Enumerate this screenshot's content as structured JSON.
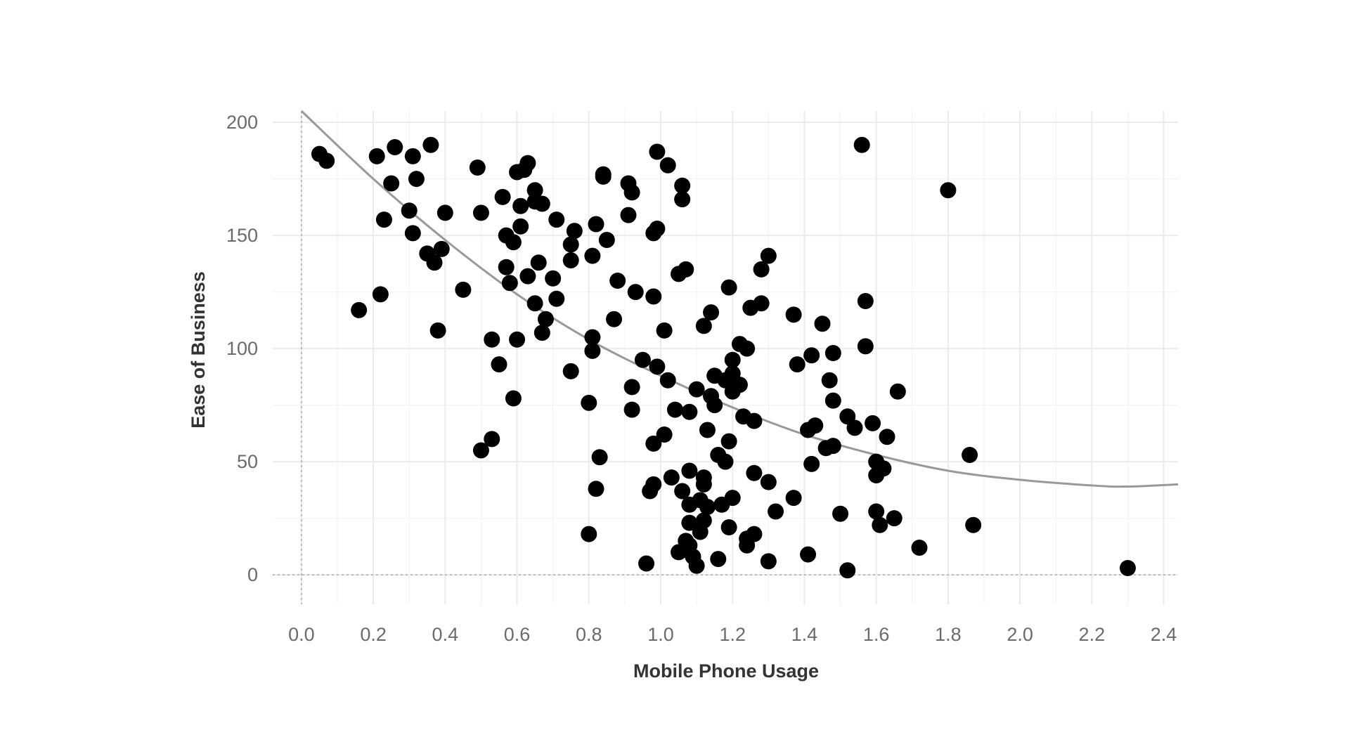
{
  "chart_data": {
    "type": "scatter",
    "title": "",
    "xlabel": "Mobile Phone Usage",
    "ylabel": "Ease of Business",
    "xlim": [
      -0.08,
      2.44
    ],
    "ylim": [
      -13,
      205
    ],
    "x_ticks": [
      "0.0",
      "0.2",
      "0.4",
      "0.6",
      "0.8",
      "1.0",
      "1.2",
      "1.4",
      "1.6",
      "1.8",
      "2.0",
      "2.2",
      "2.4"
    ],
    "y_ticks": [
      "0",
      "50",
      "100",
      "150",
      "200"
    ],
    "grid": true,
    "reference_lines": {
      "x": 0,
      "y": 0,
      "style": "dotted"
    },
    "point_color": "#000000",
    "trend_color": "#999999",
    "trend": {
      "type": "quadratic-fit",
      "points": [
        [
          0.0,
          205
        ],
        [
          0.2,
          175
        ],
        [
          0.4,
          148
        ],
        [
          0.6,
          124
        ],
        [
          0.8,
          104
        ],
        [
          1.0,
          88
        ],
        [
          1.2,
          74
        ],
        [
          1.4,
          62
        ],
        [
          1.6,
          53
        ],
        [
          1.8,
          46
        ],
        [
          2.0,
          42
        ],
        [
          2.2,
          39.5
        ],
        [
          2.3,
          39
        ],
        [
          2.44,
          40
        ]
      ]
    },
    "series": [
      {
        "points": [
          [
            0.05,
            186
          ],
          [
            0.07,
            183
          ],
          [
            0.16,
            117
          ],
          [
            0.21,
            185
          ],
          [
            0.22,
            124
          ],
          [
            0.23,
            157
          ],
          [
            0.25,
            173
          ],
          [
            0.26,
            189
          ],
          [
            0.3,
            161
          ],
          [
            0.31,
            151
          ],
          [
            0.31,
            185
          ],
          [
            0.32,
            175
          ],
          [
            0.35,
            142
          ],
          [
            0.36,
            190
          ],
          [
            0.37,
            138
          ],
          [
            0.38,
            108
          ],
          [
            0.39,
            144
          ],
          [
            0.4,
            160
          ],
          [
            0.45,
            126
          ],
          [
            0.49,
            180
          ],
          [
            0.5,
            55
          ],
          [
            0.5,
            160
          ],
          [
            0.53,
            60
          ],
          [
            0.53,
            104
          ],
          [
            0.55,
            93
          ],
          [
            0.56,
            167
          ],
          [
            0.57,
            136
          ],
          [
            0.57,
            150
          ],
          [
            0.58,
            129
          ],
          [
            0.59,
            78
          ],
          [
            0.59,
            147
          ],
          [
            0.6,
            178
          ],
          [
            0.6,
            104
          ],
          [
            0.61,
            163
          ],
          [
            0.61,
            154
          ],
          [
            0.62,
            179
          ],
          [
            0.63,
            182
          ],
          [
            0.63,
            132
          ],
          [
            0.65,
            120
          ],
          [
            0.65,
            170
          ],
          [
            0.65,
            165
          ],
          [
            0.66,
            138
          ],
          [
            0.67,
            107
          ],
          [
            0.67,
            164
          ],
          [
            0.68,
            113
          ],
          [
            0.7,
            131
          ],
          [
            0.71,
            122
          ],
          [
            0.71,
            157
          ],
          [
            0.75,
            90
          ],
          [
            0.75,
            139
          ],
          [
            0.75,
            146
          ],
          [
            0.76,
            152
          ],
          [
            0.8,
            18
          ],
          [
            0.8,
            76
          ],
          [
            0.81,
            99
          ],
          [
            0.81,
            105
          ],
          [
            0.81,
            141
          ],
          [
            0.82,
            155
          ],
          [
            0.82,
            38
          ],
          [
            0.83,
            52
          ],
          [
            0.84,
            177
          ],
          [
            0.84,
            176
          ],
          [
            0.85,
            148
          ],
          [
            0.87,
            113
          ],
          [
            0.88,
            130
          ],
          [
            0.91,
            159
          ],
          [
            0.91,
            173
          ],
          [
            0.92,
            83
          ],
          [
            0.92,
            73
          ],
          [
            0.92,
            169
          ],
          [
            0.93,
            125
          ],
          [
            0.95,
            95
          ],
          [
            0.96,
            5
          ],
          [
            0.97,
            37
          ],
          [
            0.98,
            40
          ],
          [
            0.98,
            58
          ],
          [
            0.98,
            123
          ],
          [
            0.98,
            151
          ],
          [
            0.99,
            187
          ],
          [
            0.99,
            92
          ],
          [
            0.99,
            153
          ],
          [
            1.01,
            62
          ],
          [
            1.01,
            108
          ],
          [
            1.02,
            181
          ],
          [
            1.02,
            86
          ],
          [
            1.03,
            43
          ],
          [
            1.04,
            73
          ],
          [
            1.05,
            10
          ],
          [
            1.05,
            133
          ],
          [
            1.06,
            172
          ],
          [
            1.06,
            37
          ],
          [
            1.06,
            166
          ],
          [
            1.07,
            11
          ],
          [
            1.07,
            15
          ],
          [
            1.07,
            135
          ],
          [
            1.08,
            13
          ],
          [
            1.08,
            31
          ],
          [
            1.08,
            46
          ],
          [
            1.08,
            72
          ],
          [
            1.08,
            23
          ],
          [
            1.09,
            8
          ],
          [
            1.1,
            4
          ],
          [
            1.1,
            82
          ],
          [
            1.11,
            33
          ],
          [
            1.11,
            19
          ],
          [
            1.12,
            24
          ],
          [
            1.12,
            40
          ],
          [
            1.12,
            43
          ],
          [
            1.12,
            110
          ],
          [
            1.13,
            30
          ],
          [
            1.13,
            64
          ],
          [
            1.14,
            79
          ],
          [
            1.14,
            116
          ],
          [
            1.15,
            75
          ],
          [
            1.15,
            88
          ],
          [
            1.16,
            53
          ],
          [
            1.16,
            7
          ],
          [
            1.17,
            31
          ],
          [
            1.18,
            50
          ],
          [
            1.18,
            86
          ],
          [
            1.19,
            59
          ],
          [
            1.19,
            21
          ],
          [
            1.19,
            127
          ],
          [
            1.2,
            34
          ],
          [
            1.2,
            81
          ],
          [
            1.2,
            89
          ],
          [
            1.2,
            95
          ],
          [
            1.22,
            84
          ],
          [
            1.22,
            102
          ],
          [
            1.23,
            70
          ],
          [
            1.24,
            13
          ],
          [
            1.24,
            16
          ],
          [
            1.24,
            100
          ],
          [
            1.25,
            118
          ],
          [
            1.26,
            18
          ],
          [
            1.26,
            45
          ],
          [
            1.26,
            68
          ],
          [
            1.28,
            120
          ],
          [
            1.28,
            135
          ],
          [
            1.3,
            6
          ],
          [
            1.3,
            41
          ],
          [
            1.3,
            141
          ],
          [
            1.32,
            28
          ],
          [
            1.37,
            34
          ],
          [
            1.37,
            115
          ],
          [
            1.38,
            93
          ],
          [
            1.41,
            64
          ],
          [
            1.41,
            9
          ],
          [
            1.42,
            49
          ],
          [
            1.42,
            97
          ],
          [
            1.43,
            66
          ],
          [
            1.45,
            111
          ],
          [
            1.46,
            56
          ],
          [
            1.47,
            86
          ],
          [
            1.48,
            57
          ],
          [
            1.48,
            77
          ],
          [
            1.48,
            98
          ],
          [
            1.5,
            27
          ],
          [
            1.52,
            2
          ],
          [
            1.52,
            70
          ],
          [
            1.54,
            65
          ],
          [
            1.56,
            190
          ],
          [
            1.57,
            121
          ],
          [
            1.57,
            101
          ],
          [
            1.59,
            67
          ],
          [
            1.6,
            44
          ],
          [
            1.6,
            50
          ],
          [
            1.6,
            28
          ],
          [
            1.61,
            22
          ],
          [
            1.62,
            47
          ],
          [
            1.63,
            61
          ],
          [
            1.65,
            25
          ],
          [
            1.66,
            81
          ],
          [
            1.72,
            12
          ],
          [
            1.8,
            170
          ],
          [
            1.86,
            53
          ],
          [
            1.87,
            22
          ],
          [
            2.3,
            3
          ]
        ]
      }
    ]
  }
}
